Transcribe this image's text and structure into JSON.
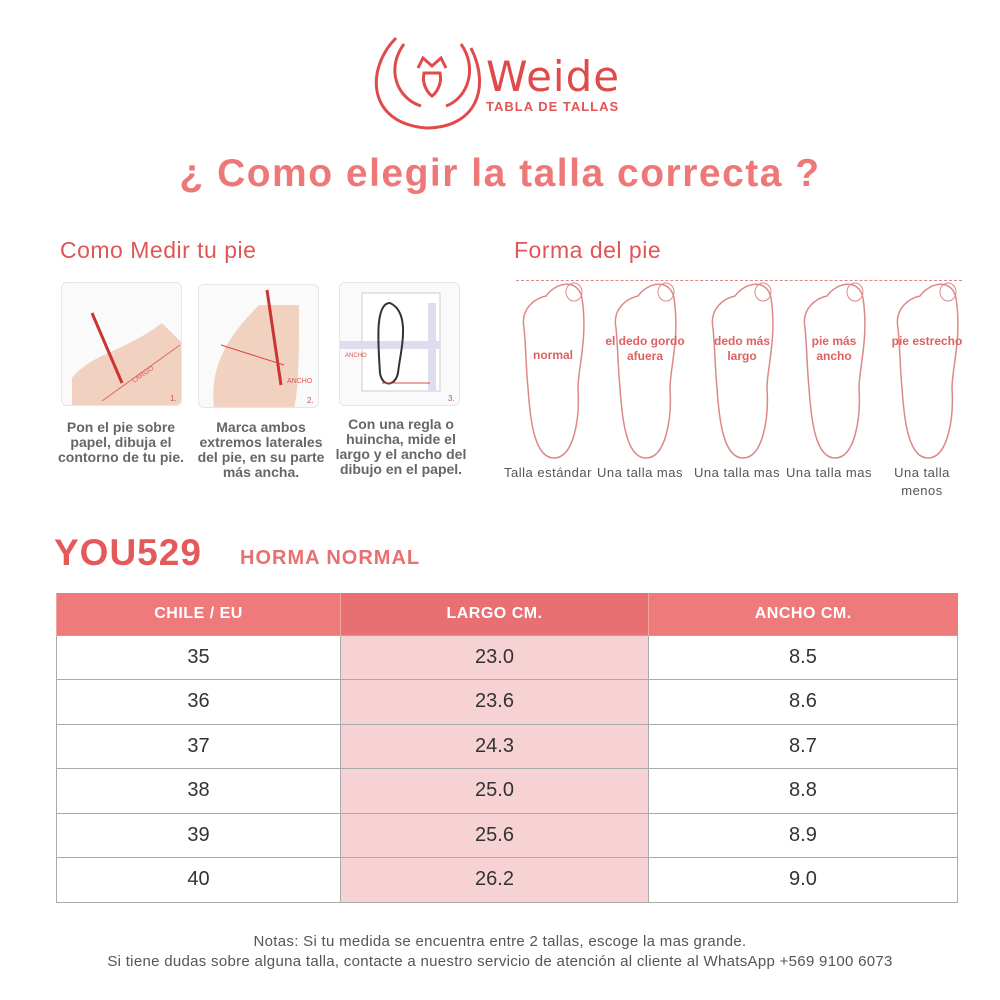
{
  "header": {
    "brand": "Weide",
    "tagline": "TABLA DE TALLAS",
    "title": "¿ Como elegir la talla correcta ?"
  },
  "measure": {
    "heading": "Como Medir tu pie",
    "steps": [
      {
        "number": "1.",
        "label": "LARGO",
        "text": "Pon el pie sobre papel, dibuja el contorno de tu pie."
      },
      {
        "number": "2.",
        "label": "ANCHO",
        "text": "Marca ambos extremos laterales del pie, en su parte más ancha."
      },
      {
        "number": "3.",
        "label": "LARGO / ANCHO",
        "text": "Con una regla o huincha, mide el largo y el ancho del dibujo en el papel."
      }
    ]
  },
  "shape": {
    "heading": "Forma del pie",
    "types": [
      {
        "inner": "normal",
        "caption": "Talla estándar"
      },
      {
        "inner": "el dedo gordo afuera",
        "caption": "Una talla mas"
      },
      {
        "inner": "dedo más largo",
        "caption": "Una talla mas"
      },
      {
        "inner": "pie más ancho",
        "caption": "Una talla mas"
      },
      {
        "inner": "pie estrecho",
        "caption": "Una talla menos"
      }
    ]
  },
  "model": {
    "code": "YOU529",
    "fit": "HORMA NORMAL"
  },
  "table": {
    "headers": [
      "CHILE / EU",
      "LARGO CM.",
      "ANCHO CM."
    ],
    "rows": [
      [
        "35",
        "23.0",
        "8.5"
      ],
      [
        "36",
        "23.6",
        "8.6"
      ],
      [
        "37",
        "24.3",
        "8.7"
      ],
      [
        "38",
        "25.0",
        "8.8"
      ],
      [
        "39",
        "25.6",
        "8.9"
      ],
      [
        "40",
        "26.2",
        "9.0"
      ]
    ]
  },
  "notes": [
    "Notas: Si tu medida se encuentra entre 2 tallas, escoge la mas grande.",
    "Si tiene dudas sobre alguna talla, contacte a nuestro servicio de atención al cliente al WhatsApp +569 9100 6073"
  ],
  "colors": {
    "accent": "#ee7a7c",
    "highlight": "#f7d2d4"
  }
}
